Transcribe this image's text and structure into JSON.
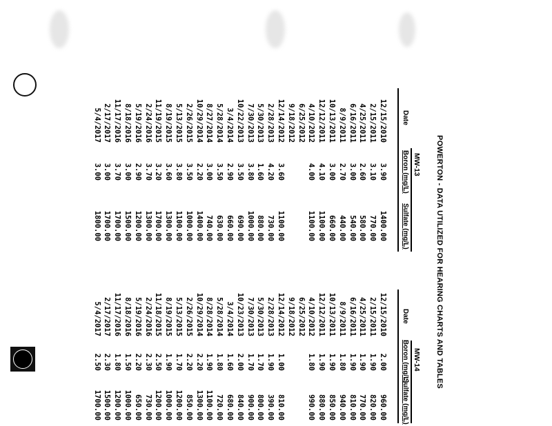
{
  "title": "POWERTON - DATA UTILIZED FOR HEARING CHARTS AND TABLES",
  "wells": [
    {
      "name": "MW-13",
      "headers": {
        "date": "Date",
        "boron": "Boron (mg/L)",
        "sulfate": "Sulfate (mg/L)"
      },
      "rows": [
        {
          "date": "12/15/2010",
          "boron": "3.90",
          "sulfate": "1400.00"
        },
        {
          "date": "2/15/2011",
          "boron": "3.10",
          "sulfate": "770.00"
        },
        {
          "date": "4/25/2011",
          "boron": "2.60",
          "sulfate": "580.00"
        },
        {
          "date": "6/16/2011",
          "boron": "3.00",
          "sulfate": "540.00"
        },
        {
          "date": "8/9/2011",
          "boron": "2.70",
          "sulfate": "440.00"
        },
        {
          "date": "10/13/2011",
          "boron": "3.00",
          "sulfate": "660.00"
        },
        {
          "date": "12/12/2011",
          "boron": "4.10",
          "sulfate": "1100.00"
        },
        {
          "date": "4/10/2012",
          "boron": "4.00",
          "sulfate": "1100.00"
        },
        {
          "date": "6/25/2012",
          "boron": "",
          "sulfate": ""
        },
        {
          "date": "9/18/2012",
          "boron": "",
          "sulfate": ""
        },
        {
          "date": "12/14/2012",
          "boron": "3.60",
          "sulfate": "1100.00"
        },
        {
          "date": "2/28/2013",
          "boron": "4.20",
          "sulfate": "730.00"
        },
        {
          "date": "5/30/2013",
          "boron": "1.60",
          "sulfate": "880.00"
        },
        {
          "date": "7/30/2013",
          "boron": "3.80",
          "sulfate": "1000.00"
        },
        {
          "date": "10/22/2013",
          "boron": "3.50",
          "sulfate": "690.00"
        },
        {
          "date": "3/4/2014",
          "boron": "2.90",
          "sulfate": "660.00"
        },
        {
          "date": "5/28/2014",
          "boron": "3.50",
          "sulfate": "630.00"
        },
        {
          "date": "8/27/2014",
          "boron": "3.00",
          "sulfate": "740.00"
        },
        {
          "date": "10/29/2014",
          "boron": "2.20",
          "sulfate": "1400.00"
        },
        {
          "date": "2/26/2015",
          "boron": "3.50",
          "sulfate": "1000.00"
        },
        {
          "date": "5/13/2015",
          "boron": "3.80",
          "sulfate": "1100.00"
        },
        {
          "date": "8/19/2015",
          "boron": "3.60",
          "sulfate": "1300.00"
        },
        {
          "date": "11/19/2015",
          "boron": "3.20",
          "sulfate": "1700.00"
        },
        {
          "date": "2/24/2016",
          "boron": "3.70",
          "sulfate": "1300.00"
        },
        {
          "date": "5/19/2016",
          "boron": "2.90",
          "sulfate": "1200.00"
        },
        {
          "date": "8/18/2016",
          "boron": "3.00",
          "sulfate": "1500.00"
        },
        {
          "date": "11/17/2016",
          "boron": "3.70",
          "sulfate": "1700.00"
        },
        {
          "date": "2/17/2017",
          "boron": "3.00",
          "sulfate": "1700.00"
        },
        {
          "date": "5/4/2017",
          "boron": "3.00",
          "sulfate": "1800.00"
        }
      ]
    },
    {
      "name": "MW-14",
      "headers": {
        "date": "Date",
        "boron": "Boron (mg/L)",
        "sulfate": "Sulfate (mg/L)"
      },
      "rows": [
        {
          "date": "12/15/2010",
          "boron": "2.00",
          "sulfate": "960.00"
        },
        {
          "date": "2/15/2011",
          "boron": "1.90",
          "sulfate": "820.00"
        },
        {
          "date": "4/25/2011",
          "boron": "1.90",
          "sulfate": "770.00"
        },
        {
          "date": "6/16/2011",
          "boron": "1.90",
          "sulfate": "810.00"
        },
        {
          "date": "8/9/2011",
          "boron": "1.80",
          "sulfate": "940.00"
        },
        {
          "date": "10/13/2011",
          "boron": "1.90",
          "sulfate": "850.00"
        },
        {
          "date": "12/12/2011",
          "boron": "1.90",
          "sulfate": "880.00"
        },
        {
          "date": "4/10/2012",
          "boron": "1.80",
          "sulfate": "990.00"
        },
        {
          "date": "6/25/2012",
          "boron": "",
          "sulfate": ""
        },
        {
          "date": "9/18/2012",
          "boron": "",
          "sulfate": ""
        },
        {
          "date": "12/14/2012",
          "boron": "1.00",
          "sulfate": "810.00"
        },
        {
          "date": "2/28/2013",
          "boron": "1.90",
          "sulfate": "390.00"
        },
        {
          "date": "5/30/2013",
          "boron": "1.70",
          "sulfate": "800.00"
        },
        {
          "date": "7/30/2013",
          "boron": "1.70",
          "sulfate": "900.00"
        },
        {
          "date": "10/23/2013",
          "boron": "2.00",
          "sulfate": "840.00"
        },
        {
          "date": "3/4/2014",
          "boron": "1.60",
          "sulfate": "680.00"
        },
        {
          "date": "5/28/2014",
          "boron": "1.80",
          "sulfate": "720.00"
        },
        {
          "date": "8/28/2014",
          "boron": "1.90",
          "sulfate": "1100.00"
        },
        {
          "date": "10/29/2014",
          "boron": "2.20",
          "sulfate": "1300.00"
        },
        {
          "date": "2/26/2015",
          "boron": "2.20",
          "sulfate": "850.00"
        },
        {
          "date": "5/13/2015",
          "boron": "1.70",
          "sulfate": "1200.00"
        },
        {
          "date": "8/19/2015",
          "boron": "1.90",
          "sulfate": "1000.00"
        },
        {
          "date": "11/18/2015",
          "boron": "2.50",
          "sulfate": "1200.00"
        },
        {
          "date": "2/24/2016",
          "boron": "2.30",
          "sulfate": "730.00"
        },
        {
          "date": "5/19/2016",
          "boron": "2.20",
          "sulfate": "650.00"
        },
        {
          "date": "8/18/2016",
          "boron": "1.50",
          "sulfate": "1000.00"
        },
        {
          "date": "11/17/2016",
          "boron": "1.80",
          "sulfate": "1200.00"
        },
        {
          "date": "2/17/2017",
          "boron": "2.30",
          "sulfate": "1500.00"
        },
        {
          "date": "5/4/2017",
          "boron": "2.50",
          "sulfate": "1700.00"
        }
      ]
    }
  ]
}
